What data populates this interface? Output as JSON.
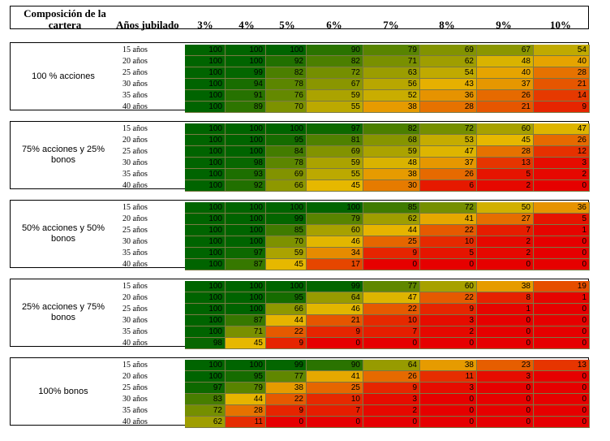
{
  "header": {
    "composition": "Composición de la cartera",
    "years": "Años jubilado",
    "rates": [
      "3%",
      "4%",
      "5%",
      "6%",
      "7%",
      "8%",
      "9%",
      "10%"
    ]
  },
  "row_labels": [
    "15 años",
    "20 años",
    "25 años",
    "30 años",
    "35 años",
    "40 años"
  ],
  "blocks": [
    {
      "label": "100 % acciones",
      "values": [
        [
          100,
          100,
          100,
          90,
          79,
          69,
          67,
          54
        ],
        [
          100,
          100,
          92,
          82,
          71,
          62,
          48,
          40
        ],
        [
          100,
          99,
          82,
          72,
          63,
          54,
          40,
          28
        ],
        [
          100,
          94,
          78,
          67,
          56,
          43,
          37,
          21
        ],
        [
          100,
          91,
          76,
          59,
          52,
          36,
          26,
          14
        ],
        [
          100,
          89,
          70,
          55,
          38,
          28,
          21,
          9
        ]
      ]
    },
    {
      "label": "75% acciones y 25% bonos",
      "values": [
        [
          100,
          100,
          100,
          97,
          82,
          72,
          60,
          47
        ],
        [
          100,
          100,
          95,
          81,
          68,
          53,
          45,
          26
        ],
        [
          100,
          100,
          84,
          69,
          59,
          47,
          28,
          12
        ],
        [
          100,
          98,
          78,
          59,
          48,
          37,
          13,
          3
        ],
        [
          100,
          93,
          69,
          55,
          38,
          26,
          5,
          2
        ],
        [
          100,
          92,
          66,
          45,
          30,
          6,
          2,
          0
        ]
      ]
    },
    {
      "label": "50% acciones y 50% bonos",
      "values": [
        [
          100,
          100,
          100,
          100,
          85,
          72,
          50,
          36
        ],
        [
          100,
          100,
          99,
          79,
          62,
          41,
          27,
          5
        ],
        [
          100,
          100,
          85,
          60,
          44,
          22,
          7,
          1
        ],
        [
          100,
          100,
          70,
          46,
          25,
          10,
          2,
          0
        ],
        [
          100,
          97,
          59,
          34,
          9,
          5,
          2,
          0
        ],
        [
          100,
          87,
          45,
          17,
          0,
          0,
          0,
          0
        ]
      ]
    },
    {
      "label": "25% acciones y 75% bonos",
      "values": [
        [
          100,
          100,
          100,
          99,
          77,
          60,
          38,
          19
        ],
        [
          100,
          100,
          95,
          64,
          47,
          22,
          8,
          1
        ],
        [
          100,
          100,
          66,
          46,
          22,
          9,
          1,
          0
        ],
        [
          100,
          87,
          44,
          21,
          10,
          3,
          0,
          0
        ],
        [
          100,
          71,
          22,
          9,
          7,
          2,
          0,
          0
        ],
        [
          98,
          45,
          9,
          0,
          0,
          0,
          0,
          0
        ]
      ]
    },
    {
      "label": "100% bonos",
      "values": [
        [
          100,
          100,
          99,
          90,
          64,
          38,
          23,
          13
        ],
        [
          100,
          95,
          77,
          41,
          26,
          11,
          3,
          0
        ],
        [
          97,
          79,
          38,
          25,
          9,
          3,
          0,
          0
        ],
        [
          83,
          44,
          22,
          10,
          3,
          0,
          0,
          0
        ],
        [
          72,
          28,
          9,
          7,
          2,
          0,
          0,
          0
        ],
        [
          62,
          11,
          0,
          0,
          0,
          0,
          0,
          0
        ]
      ]
    }
  ],
  "colors": {
    "low": "#e60000",
    "mid": "#e6b800",
    "high": "#006400"
  }
}
